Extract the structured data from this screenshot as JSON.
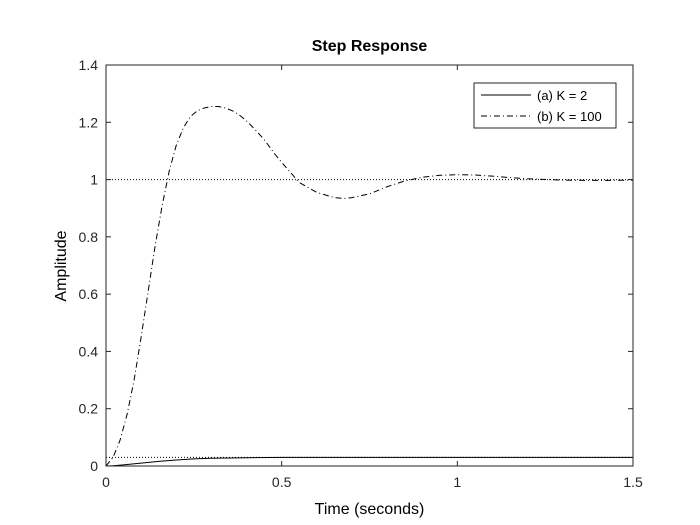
{
  "chart_data": {
    "type": "line",
    "title": "Step Response",
    "xlabel": "Time (seconds)",
    "ylabel": "Amplitude",
    "xlim": [
      0,
      1.5
    ],
    "ylim": [
      0,
      1.4
    ],
    "xticks": [
      "0",
      "0.5",
      "1",
      "1.5"
    ],
    "yticks": [
      "0",
      "0.2",
      "0.4",
      "0.6",
      "0.8",
      "1",
      "1.2",
      "1.4"
    ],
    "grid": false,
    "legend_position": "top-right",
    "series": [
      {
        "name": "(a) K = 2",
        "style": "solid",
        "x": [
          0,
          0.02,
          0.05,
          0.1,
          0.15,
          0.2,
          0.25,
          0.3,
          0.4,
          0.5,
          0.6,
          0.8,
          1.0,
          1.2,
          1.5
        ],
        "y": [
          0,
          0.001,
          0.004,
          0.01,
          0.016,
          0.021,
          0.025,
          0.027,
          0.029,
          0.03,
          0.03,
          0.03,
          0.03,
          0.03,
          0.03
        ]
      },
      {
        "name": "(b) K = 100",
        "style": "dashdot",
        "x": [
          0,
          0.02,
          0.04,
          0.06,
          0.08,
          0.1,
          0.12,
          0.14,
          0.16,
          0.18,
          0.2,
          0.22,
          0.24,
          0.26,
          0.28,
          0.3,
          0.32,
          0.34,
          0.36,
          0.38,
          0.4,
          0.42,
          0.45,
          0.48,
          0.5,
          0.55,
          0.6,
          0.65,
          0.68,
          0.7,
          0.75,
          0.8,
          0.85,
          0.9,
          0.95,
          1.0,
          1.05,
          1.1,
          1.15,
          1.2,
          1.3,
          1.4,
          1.5
        ],
        "y": [
          0,
          0.03,
          0.09,
          0.18,
          0.3,
          0.45,
          0.61,
          0.77,
          0.91,
          1.03,
          1.12,
          1.18,
          1.22,
          1.24,
          1.25,
          1.255,
          1.255,
          1.25,
          1.24,
          1.225,
          1.205,
          1.18,
          1.14,
          1.09,
          1.06,
          0.99,
          0.955,
          0.937,
          0.934,
          0.937,
          0.95,
          0.975,
          0.995,
          1.008,
          1.015,
          1.017,
          1.016,
          1.012,
          1.007,
          1.003,
          0.998,
          0.997,
          0.998
        ]
      }
    ],
    "reference_lines": [
      {
        "value": 1.0,
        "style": "dotted"
      },
      {
        "value": 0.03,
        "style": "dotted"
      }
    ]
  }
}
